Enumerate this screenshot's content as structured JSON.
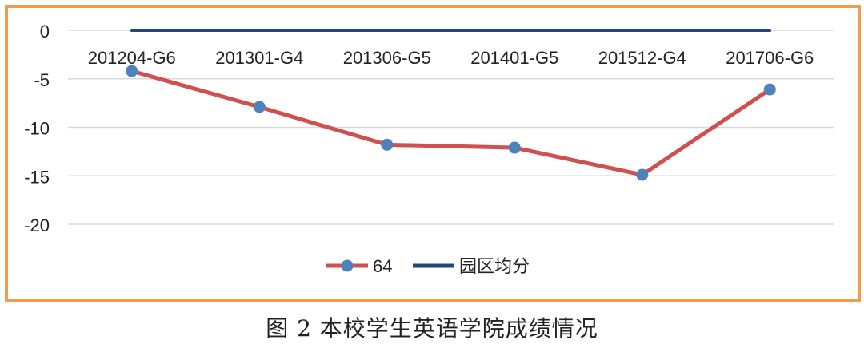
{
  "chart_data": {
    "type": "line",
    "categories": [
      "201204-G6",
      "201301-G4",
      "201306-G5",
      "201401-G5",
      "201512-G4",
      "201706-G6"
    ],
    "series": [
      {
        "name": "64",
        "values": [
          -4.2,
          -7.9,
          -11.8,
          -12.1,
          -14.9,
          -6.1
        ],
        "color": "#D0504F",
        "marker_color": "#4F81BD"
      },
      {
        "name": "园区均分",
        "values": [
          0,
          0,
          0,
          0,
          0,
          0
        ],
        "color": "#1F497D"
      }
    ],
    "ylim": [
      -20,
      0
    ],
    "yticks": [
      0,
      -5,
      -10,
      -15,
      -20
    ],
    "grid": true,
    "legend": "bottom",
    "border_color": "#F19C4D"
  },
  "caption": "图 2  本校学生英语学院成绩情况"
}
